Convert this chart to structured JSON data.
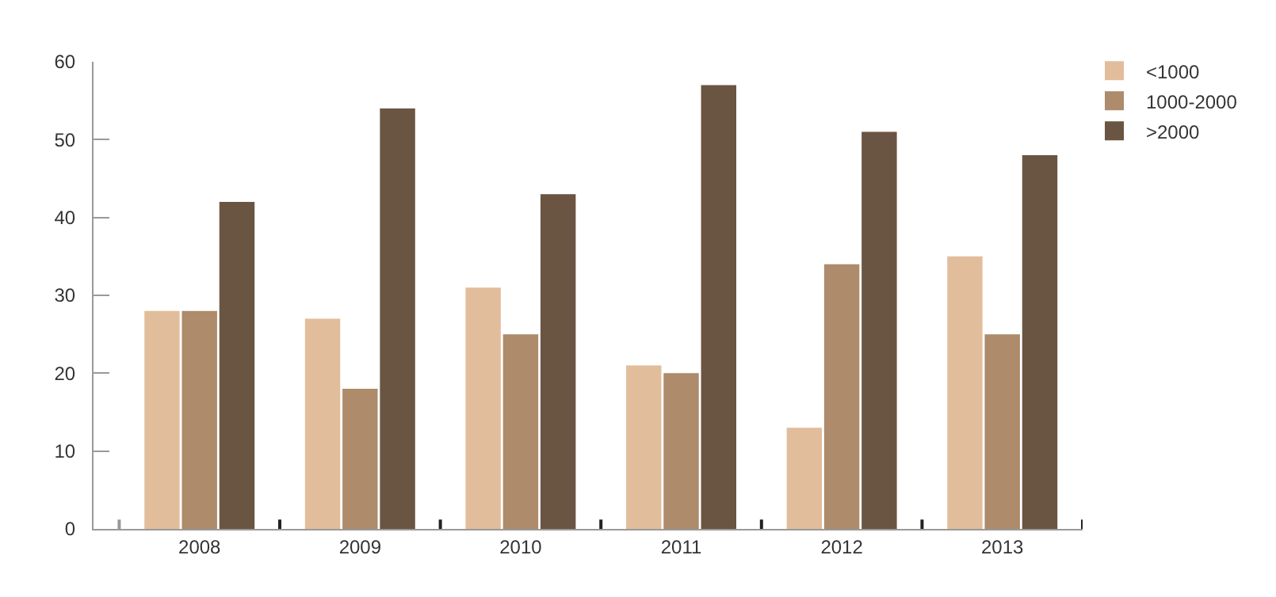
{
  "chart_data": {
    "type": "bar",
    "categories": [
      "2008",
      "2009",
      "2010",
      "2011",
      "2012",
      "2013"
    ],
    "series": [
      {
        "name": "<1000",
        "color": "#e2bd9c",
        "values": [
          28,
          27,
          31,
          21,
          13,
          35
        ]
      },
      {
        "name": "1000-2000",
        "color": "#ad8b6b",
        "values": [
          28,
          18,
          25,
          20,
          34,
          25
        ]
      },
      {
        "name": ">2000",
        "color": "#6a5542",
        "values": [
          42,
          54,
          43,
          57,
          51,
          48
        ]
      }
    ],
    "ylim": [
      0,
      60
    ],
    "yticks": [
      0,
      10,
      20,
      30,
      40,
      50,
      60
    ],
    "legend": "top right"
  }
}
